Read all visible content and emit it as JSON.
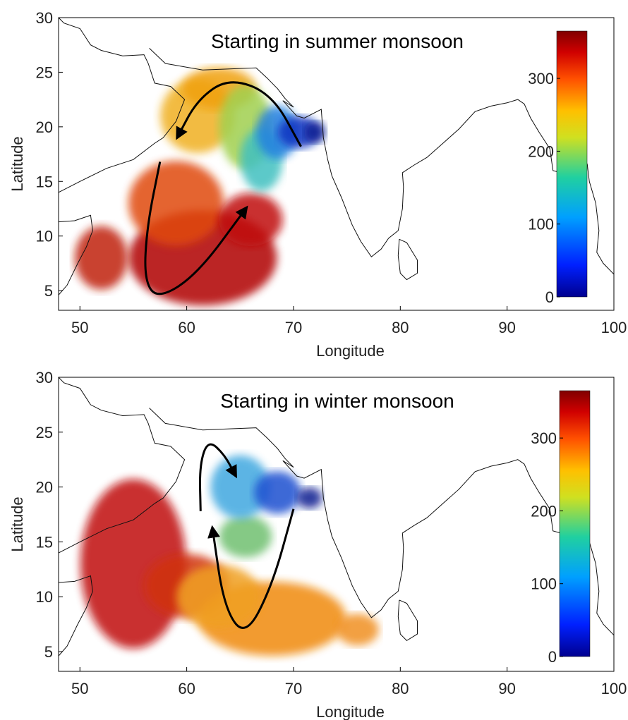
{
  "chart_data": [
    {
      "type": "map",
      "annotation": "Starting in summer monsoon",
      "xlabel": "Longitude",
      "ylabel": "Latitude",
      "xlim": [
        48,
        100
      ],
      "ylim": [
        3.2,
        30
      ],
      "xticks": [
        50,
        60,
        70,
        80,
        90,
        100
      ],
      "yticks": [
        5,
        10,
        15,
        20,
        25,
        30
      ],
      "clim": [
        0,
        365
      ],
      "cticks": [
        0,
        100,
        200,
        300
      ]
    },
    {
      "type": "map",
      "annotation": "Starting in winter monsoon",
      "xlabel": "Longitude",
      "ylabel": "Latitude",
      "xlim": [
        48,
        100
      ],
      "ylim": [
        3.2,
        30
      ],
      "xticks": [
        50,
        60,
        70,
        80,
        90,
        100
      ],
      "yticks": [
        5,
        10,
        15,
        20,
        25,
        30
      ],
      "clim": [
        0,
        365
      ],
      "cticks": [
        0,
        100,
        200,
        300
      ]
    }
  ]
}
